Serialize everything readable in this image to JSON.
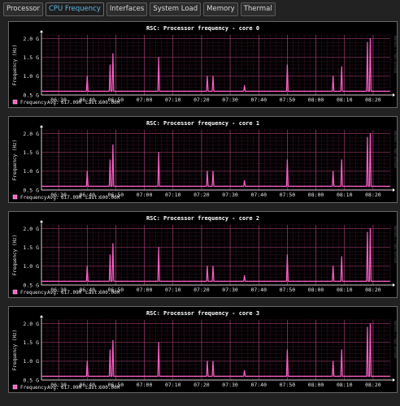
{
  "tabs": [
    {
      "label": "Processor",
      "active": false
    },
    {
      "label": "CPU Frequency",
      "active": true
    },
    {
      "label": "Interfaces",
      "active": false
    },
    {
      "label": "System Load",
      "active": false
    },
    {
      "label": "Memory",
      "active": false
    },
    {
      "label": "Thermal",
      "active": false
    }
  ],
  "colors": {
    "line": "#ff5fc8",
    "grid": "#7a2a55",
    "accent": "#5fb6e6"
  },
  "legend": {
    "series": "Frequency",
    "avg_label": "Avg:",
    "avg": "617.09M",
    "last_label": "Last:",
    "last": "600.00M"
  },
  "watermark": "RRDTOOL / TOBI OETIKER",
  "chart_data": [
    {
      "type": "line",
      "title": "RSC: Processor frequency - core 0",
      "ylabel": "Frequency (Hz)",
      "y_ticks": [
        0.5,
        1.0,
        1.5,
        2.0
      ],
      "y_tick_labels": [
        "0.5 G",
        "1.0 G",
        "1.5 G",
        "2.0 G"
      ],
      "ylim": [
        0.5,
        2.1
      ],
      "x_ticks": [
        "06:30",
        "06:40",
        "06:50",
        "07:00",
        "07:10",
        "07:20",
        "07:30",
        "07:40",
        "07:50",
        "08:00",
        "08:10",
        "08:20"
      ],
      "x_range": [
        "06:24",
        "08:26"
      ],
      "baseline": 0.6,
      "series": [
        {
          "name": "Frequency",
          "peaks": [
            [
              "06:40",
              1.0
            ],
            [
              "06:48",
              1.3
            ],
            [
              "06:49",
              1.6
            ],
            [
              "07:05",
              1.5
            ],
            [
              "07:22",
              1.0
            ],
            [
              "07:24",
              1.0
            ],
            [
              "07:35",
              0.75
            ],
            [
              "07:50",
              1.3
            ],
            [
              "08:06",
              1.0
            ],
            [
              "08:09",
              1.25
            ],
            [
              "08:18",
              1.9
            ],
            [
              "08:19",
              2.0
            ]
          ]
        }
      ]
    },
    {
      "type": "line",
      "title": "RSC: Processor frequency - core 1",
      "ylabel": "Frequency (Hz)",
      "y_ticks": [
        0.5,
        1.0,
        1.5,
        2.0
      ],
      "y_tick_labels": [
        "0.5 G",
        "1.0 G",
        "1.5 G",
        "2.0 G"
      ],
      "ylim": [
        0.5,
        2.1
      ],
      "x_ticks": [
        "06:30",
        "06:40",
        "06:50",
        "07:00",
        "07:10",
        "07:20",
        "07:30",
        "07:40",
        "07:50",
        "08:00",
        "08:10",
        "08:20"
      ],
      "x_range": [
        "06:24",
        "08:26"
      ],
      "baseline": 0.6,
      "series": [
        {
          "name": "Frequency",
          "peaks": [
            [
              "06:40",
              1.0
            ],
            [
              "06:48",
              1.3
            ],
            [
              "06:49",
              1.7
            ],
            [
              "07:05",
              1.5
            ],
            [
              "07:22",
              1.0
            ],
            [
              "07:24",
              1.0
            ],
            [
              "07:35",
              0.75
            ],
            [
              "07:50",
              1.3
            ],
            [
              "08:06",
              1.0
            ],
            [
              "08:09",
              1.3
            ],
            [
              "08:18",
              1.9
            ],
            [
              "08:19",
              2.0
            ]
          ]
        }
      ]
    },
    {
      "type": "line",
      "title": "RSC: Processor frequency - core 2",
      "ylabel": "Frequency (Hz)",
      "y_ticks": [
        0.5,
        1.0,
        1.5,
        2.0
      ],
      "y_tick_labels": [
        "0.5 G",
        "1.0 G",
        "1.5 G",
        "2.0 G"
      ],
      "ylim": [
        0.5,
        2.1
      ],
      "x_ticks": [
        "06:30",
        "06:40",
        "06:50",
        "07:00",
        "07:10",
        "07:20",
        "07:30",
        "07:40",
        "07:50",
        "08:00",
        "08:10",
        "08:20"
      ],
      "x_range": [
        "06:24",
        "08:26"
      ],
      "baseline": 0.6,
      "series": [
        {
          "name": "Frequency",
          "peaks": [
            [
              "06:40",
              1.0
            ],
            [
              "06:48",
              1.3
            ],
            [
              "06:49",
              1.6
            ],
            [
              "07:05",
              1.5
            ],
            [
              "07:22",
              1.0
            ],
            [
              "07:24",
              1.0
            ],
            [
              "07:35",
              0.75
            ],
            [
              "07:50",
              1.3
            ],
            [
              "08:06",
              1.0
            ],
            [
              "08:09",
              1.25
            ],
            [
              "08:18",
              1.9
            ],
            [
              "08:19",
              2.0
            ]
          ]
        }
      ]
    },
    {
      "type": "line",
      "title": "RSC: Processor frequency - core 3",
      "ylabel": "Frequency (Hz)",
      "y_ticks": [
        0.5,
        1.0,
        1.5,
        2.0
      ],
      "y_tick_labels": [
        "0.5 G",
        "1.0 G",
        "1.5 G",
        "2.0 G"
      ],
      "ylim": [
        0.5,
        2.1
      ],
      "x_ticks": [
        "06:30",
        "06:40",
        "06:50",
        "07:00",
        "07:10",
        "07:20",
        "07:30",
        "07:40",
        "07:50",
        "08:00",
        "08:10",
        "08:20"
      ],
      "x_range": [
        "06:24",
        "08:26"
      ],
      "baseline": 0.6,
      "series": [
        {
          "name": "Frequency",
          "peaks": [
            [
              "06:40",
              1.0
            ],
            [
              "06:48",
              1.3
            ],
            [
              "06:49",
              1.55
            ],
            [
              "07:05",
              1.5
            ],
            [
              "07:22",
              1.0
            ],
            [
              "07:24",
              1.0
            ],
            [
              "07:35",
              0.75
            ],
            [
              "07:50",
              1.3
            ],
            [
              "08:06",
              1.0
            ],
            [
              "08:09",
              1.3
            ],
            [
              "08:18",
              1.9
            ],
            [
              "08:19",
              2.0
            ]
          ]
        }
      ]
    }
  ]
}
